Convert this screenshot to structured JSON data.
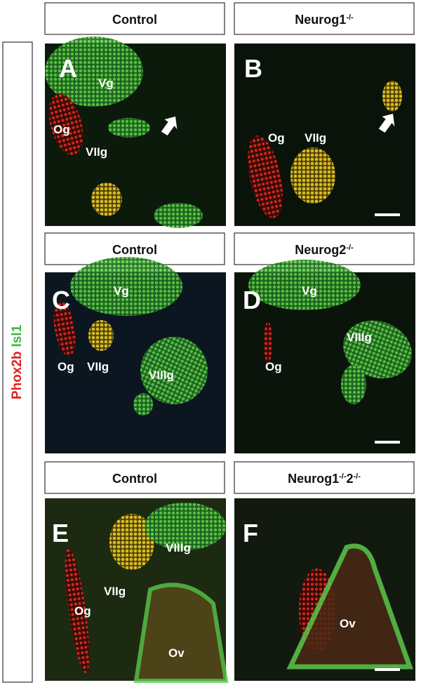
{
  "side_label": [
    {
      "text": "Phox2b",
      "color": "#e0201c"
    },
    {
      "text": "Isl1",
      "color": "#3cb83c"
    }
  ],
  "rows": [
    {
      "headers": [
        {
          "segments": [
            {
              "text": "Control"
            }
          ]
        },
        {
          "segments": [
            {
              "text": "Neurog1"
            },
            {
              "text": "-/-",
              "sup": true
            }
          ]
        }
      ],
      "panels": [
        {
          "letter": "A",
          "labels": [
            "Vg",
            "Og",
            "VIIg"
          ]
        },
        {
          "letter": "B",
          "labels": [
            "Og",
            "VIIg"
          ]
        }
      ]
    },
    {
      "headers": [
        {
          "segments": [
            {
              "text": "Control"
            }
          ]
        },
        {
          "segments": [
            {
              "text": "Neurog2"
            },
            {
              "text": "-/-",
              "sup": true
            }
          ]
        }
      ],
      "panels": [
        {
          "letter": "C",
          "labels": [
            "Vg",
            "Og",
            "VIIg",
            "VIIIg"
          ]
        },
        {
          "letter": "D",
          "labels": [
            "Vg",
            "VIIIg",
            "Og"
          ]
        }
      ]
    },
    {
      "headers": [
        {
          "segments": [
            {
              "text": "Control"
            }
          ]
        },
        {
          "segments": [
            {
              "text": "Neurog1"
            },
            {
              "text": "-/-",
              "sup": true
            },
            {
              "text": "2"
            },
            {
              "text": "-/-",
              "sup": true
            }
          ]
        }
      ],
      "panels": [
        {
          "letter": "E",
          "labels": [
            "VIIg",
            "VIIIg",
            "Og",
            "Ov"
          ]
        },
        {
          "letter": "F",
          "labels": [
            "Ov"
          ]
        }
      ]
    }
  ]
}
